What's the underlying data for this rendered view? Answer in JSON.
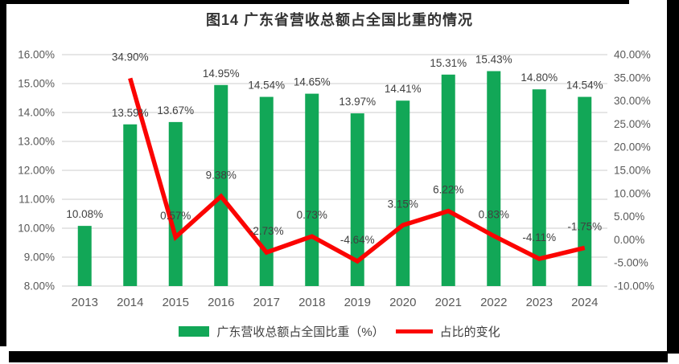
{
  "title": {
    "text": "图14  广东省营收总额占全国比重的情况"
  },
  "chart_data": {
    "type": "bar+line",
    "title": "图14  广东省营收总额占全国比重的情况",
    "categories": [
      "2013",
      "2014",
      "2015",
      "2016",
      "2017",
      "2018",
      "2019",
      "2020",
      "2021",
      "2022",
      "2023",
      "2024"
    ],
    "series": [
      {
        "name": "广东营收总额占全国比重（%）",
        "type": "bar",
        "axis": "left",
        "color": "#12a757",
        "values": [
          10.08,
          13.59,
          13.67,
          14.95,
          14.54,
          14.65,
          13.97,
          14.41,
          15.31,
          15.43,
          14.8,
          14.54
        ],
        "labels": [
          "10.08%",
          "13.59%",
          "13.67%",
          "14.95%",
          "14.54%",
          "14.65%",
          "13.97%",
          "14.41%",
          "15.31%",
          "15.43%",
          "14.80%",
          "14.54%"
        ]
      },
      {
        "name": "占比的变化",
        "type": "line",
        "axis": "right",
        "color": "#fb0402",
        "values": [
          null,
          34.9,
          0.57,
          9.38,
          -2.73,
          0.73,
          -4.64,
          3.15,
          6.22,
          0.83,
          -4.11,
          -1.75
        ],
        "labels": [
          "",
          "34.90%",
          "0.57%",
          "9.38%",
          "-2.73%",
          "0.73%",
          "-4.64%",
          "3.15%",
          "6.22%",
          "0.83%",
          "-4.11%",
          "-1.75%"
        ]
      }
    ],
    "left_axis": {
      "min": 8,
      "max": 16,
      "step": 1,
      "tick_labels": [
        "16.00%",
        "15.00%",
        "14.00%",
        "13.00%",
        "12.00%",
        "11.00%",
        "10.00%",
        "9.00%",
        "8.00%"
      ]
    },
    "right_axis": {
      "min": -10,
      "max": 40,
      "step": 5,
      "tick_labels": [
        "40.00%",
        "35.00%",
        "30.00%",
        "25.00%",
        "20.00%",
        "15.00%",
        "10.00%",
        "5.00%",
        "0.00%",
        "-5.00%",
        "-10.00%"
      ]
    },
    "grid": true,
    "legend_position": "bottom",
    "colors": {
      "gridline": "#e2e2e2",
      "axis_text": "#595959",
      "data_label_text": "#404040",
      "title_text": "#333333",
      "frame": "#000000",
      "background": "#ffffff"
    }
  }
}
